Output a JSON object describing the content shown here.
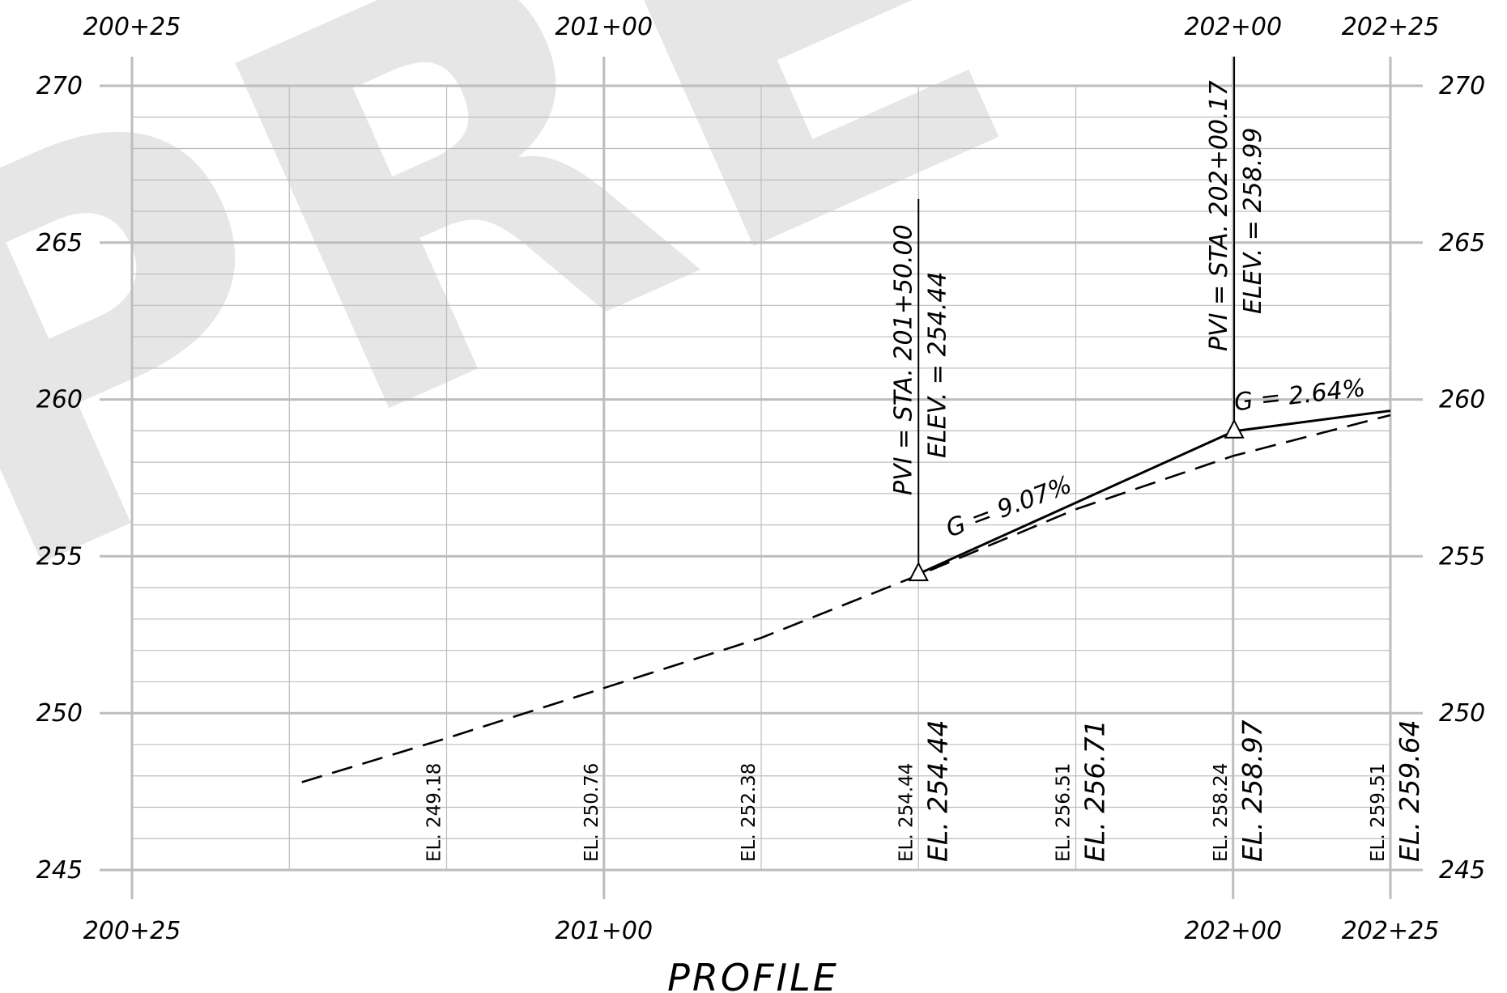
{
  "title": "PROFILE",
  "watermark": "PRE",
  "colors": {
    "grid": "#bdbdbd",
    "watermark": "#e6e6e6",
    "ink": "#000000"
  },
  "chart_data": {
    "type": "line",
    "x_ticks": [
      {
        "station": 20025,
        "label": "200+25"
      },
      {
        "station": 20100,
        "label": "201+00"
      },
      {
        "station": 20200,
        "label": "202+00"
      },
      {
        "station": 20225,
        "label": "202+25"
      }
    ],
    "y_ticks": [
      {
        "elev": 245,
        "label": "245"
      },
      {
        "elev": 250,
        "label": "250"
      },
      {
        "elev": 255,
        "label": "255"
      },
      {
        "elev": 260,
        "label": "260"
      },
      {
        "elev": 265,
        "label": "265"
      },
      {
        "elev": 270,
        "label": "270"
      }
    ],
    "xlim": [
      20025,
      20225
    ],
    "ylim": [
      245,
      270
    ],
    "existing_ground": [
      {
        "station": 20052,
        "elev": 247.8
      },
      {
        "station": 20075,
        "elev": 249.2
      },
      {
        "station": 20100,
        "elev": 250.8
      },
      {
        "station": 20125,
        "elev": 252.4
      },
      {
        "station": 20150,
        "elev": 254.4
      },
      {
        "station": 20175,
        "elev": 256.5
      },
      {
        "station": 20200,
        "elev": 258.2
      },
      {
        "station": 20225,
        "elev": 259.5
      }
    ],
    "proposed_grade": [
      {
        "station": 20150,
        "elev": 254.44
      },
      {
        "station": 20175,
        "elev": 256.71
      },
      {
        "station": 20200,
        "elev": 258.97
      },
      {
        "station": 20225,
        "elev": 259.64
      }
    ],
    "existing_labels": [
      {
        "station": 20075,
        "text": "EL. 249.18"
      },
      {
        "station": 20100,
        "text": "EL. 250.76"
      },
      {
        "station": 20125,
        "text": "EL. 252.38"
      },
      {
        "station": 20150,
        "text": "EL. 254.44"
      },
      {
        "station": 20175,
        "text": "EL. 256.51"
      },
      {
        "station": 20200,
        "text": "EL. 258.24"
      },
      {
        "station": 20225,
        "text": "EL. 259.51"
      }
    ],
    "proposed_labels": [
      {
        "station": 20150,
        "text": "EL. 254.44"
      },
      {
        "station": 20175,
        "text": "EL. 256.71"
      },
      {
        "station": 20200,
        "text": "EL. 258.97"
      },
      {
        "station": 20225,
        "text": "EL. 259.64"
      }
    ],
    "pvis": [
      {
        "station": 20150,
        "elev": 254.44,
        "line1": "PVI = STA. 201+50.00",
        "line2": "ELEV. = 254.44"
      },
      {
        "station": 20200.17,
        "elev": 258.99,
        "line1": "PVI = STA. 202+00.17",
        "line2": "ELEV. = 258.99"
      }
    ],
    "grades": [
      {
        "text": "G = 9.07%",
        "station": 20170,
        "elev": 256.4
      },
      {
        "text": "G = 2.64%",
        "station": 20212,
        "elev": 259.6
      }
    ]
  }
}
